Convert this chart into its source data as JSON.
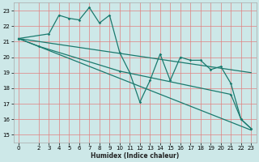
{
  "bg_color": "#cde8e8",
  "grid_color_v": "#e08080",
  "grid_color_h": "#e08080",
  "line_color": "#1a7a6e",
  "line_width": 0.9,
  "marker": "D",
  "marker_size": 1.8,
  "xlabel": "Humidex (Indice chaleur)",
  "xlabel_fontsize": 5.5,
  "tick_fontsize": 5.0,
  "ylim": [
    14.5,
    23.5
  ],
  "xlim": [
    -0.5,
    23.5
  ],
  "yticks": [
    15,
    16,
    17,
    18,
    19,
    20,
    21,
    22,
    23
  ],
  "xticks": [
    0,
    2,
    3,
    4,
    5,
    6,
    7,
    8,
    9,
    10,
    11,
    12,
    13,
    14,
    15,
    16,
    17,
    18,
    19,
    20,
    21,
    22,
    23
  ],
  "series": [
    {
      "x": [
        0,
        3,
        4,
        5,
        6,
        7,
        8,
        9,
        10,
        11,
        12,
        13,
        14,
        15,
        16,
        17,
        18,
        19,
        20,
        21,
        22,
        23
      ],
      "y": [
        21.2,
        21.5,
        22.7,
        22.5,
        22.4,
        23.2,
        22.2,
        22.7,
        20.3,
        19.0,
        17.1,
        18.5,
        20.2,
        18.5,
        20.0,
        19.8,
        19.8,
        19.2,
        19.4,
        18.3,
        16.0,
        15.4
      ]
    },
    {
      "x": [
        0,
        23
      ],
      "y": [
        21.2,
        15.3
      ]
    },
    {
      "x": [
        0,
        23
      ],
      "y": [
        21.2,
        19.0
      ]
    },
    {
      "x": [
        0,
        2,
        10,
        21,
        22,
        23
      ],
      "y": [
        21.2,
        20.7,
        19.1,
        17.6,
        16.0,
        15.4
      ]
    }
  ]
}
